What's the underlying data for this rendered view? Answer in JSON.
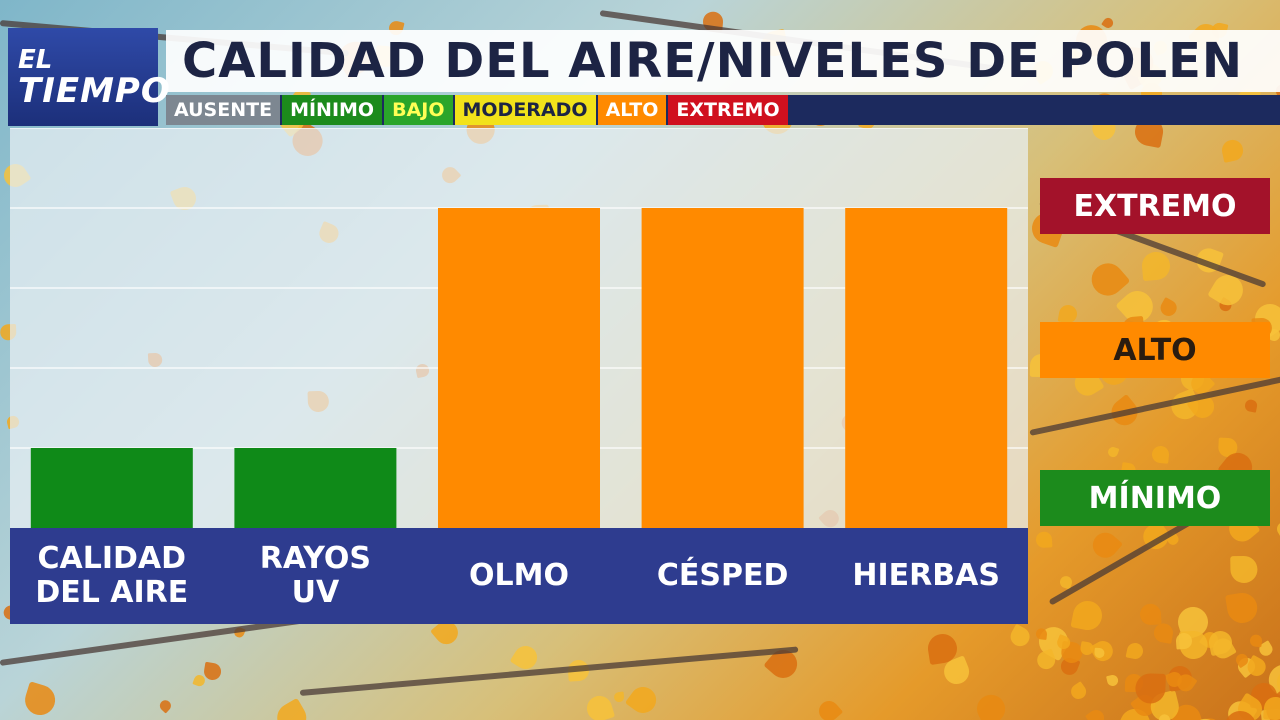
{
  "logo": {
    "line1": "EL",
    "line2": "TIEMPO"
  },
  "title": "CALIDAD DEL AIRE/NIVELES DE POLEN",
  "scale_legend": [
    {
      "label": "AUSENTE",
      "bg": "#7d8791",
      "fg": "#ffffff"
    },
    {
      "label": "MÍNIMO",
      "bg": "#1c8b1c",
      "fg": "#ffffff"
    },
    {
      "label": "BAJO",
      "bg": "#2aa52a",
      "fg": "#ffff55"
    },
    {
      "label": "MODERADO",
      "bg": "#f2e21a",
      "fg": "#1d2444"
    },
    {
      "label": "ALTO",
      "bg": "#ff8a00",
      "fg": "#ffffff"
    },
    {
      "label": "EXTREMO",
      "bg": "#d0101e",
      "fg": "#ffffff"
    }
  ],
  "level_labels": {
    "extremo": {
      "label": "EXTREMO",
      "color": "#a3122a"
    },
    "alto": {
      "label": "ALTO",
      "color": "#ff8a00"
    },
    "minimo": {
      "label": "MÍNIMO",
      "color": "#1c8b1c"
    }
  },
  "chart_data": {
    "type": "bar",
    "categories": [
      "CALIDAD\nDEL AIRE",
      "RAYOS\nUV",
      "OLMO",
      "CÉSPED",
      "HIERBAS"
    ],
    "levels": [
      "MÍNIMO",
      "MÍNIMO",
      "ALTO",
      "ALTO",
      "ALTO"
    ],
    "values": [
      1,
      1,
      4,
      4,
      4
    ],
    "colors": [
      "#0f8a18",
      "#0f8a18",
      "#ff8a00",
      "#ff8a00",
      "#ff8a00"
    ],
    "ylim": [
      0,
      5
    ],
    "grid": true
  }
}
